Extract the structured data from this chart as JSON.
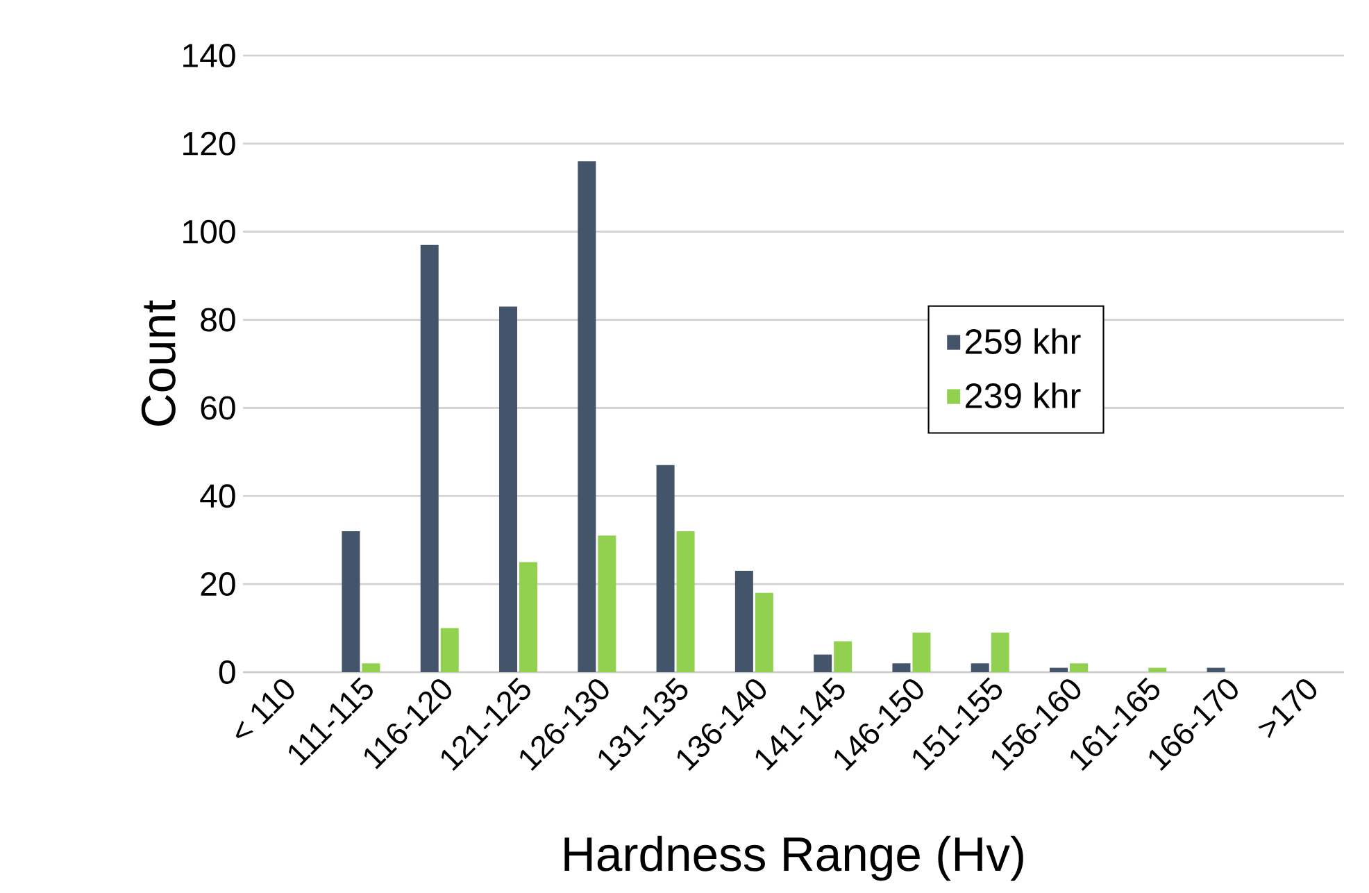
{
  "chart_data": {
    "type": "bar",
    "xlabel": "Hardness Range (Hv)",
    "ylabel": "Count",
    "categories": [
      "< 110",
      "111-115",
      "116-120",
      "121-125",
      "126-130",
      "131-135",
      "136-140",
      "141-145",
      "146-150",
      "151-155",
      "156-160",
      "161-165",
      "166-170",
      ">170"
    ],
    "series": [
      {
        "name": "259 khr",
        "color": "#44546a",
        "values": [
          0,
          32,
          97,
          83,
          116,
          47,
          23,
          4,
          2,
          2,
          1,
          0,
          1,
          0
        ]
      },
      {
        "name": "239 khr",
        "color": "#92d050",
        "values": [
          0,
          2,
          10,
          25,
          31,
          32,
          18,
          7,
          9,
          9,
          2,
          1,
          0,
          0
        ]
      }
    ],
    "ylim": [
      0,
      140
    ],
    "yticks": [
      0,
      20,
      40,
      60,
      80,
      100,
      120,
      140
    ],
    "grid": "y",
    "legend": "right"
  }
}
